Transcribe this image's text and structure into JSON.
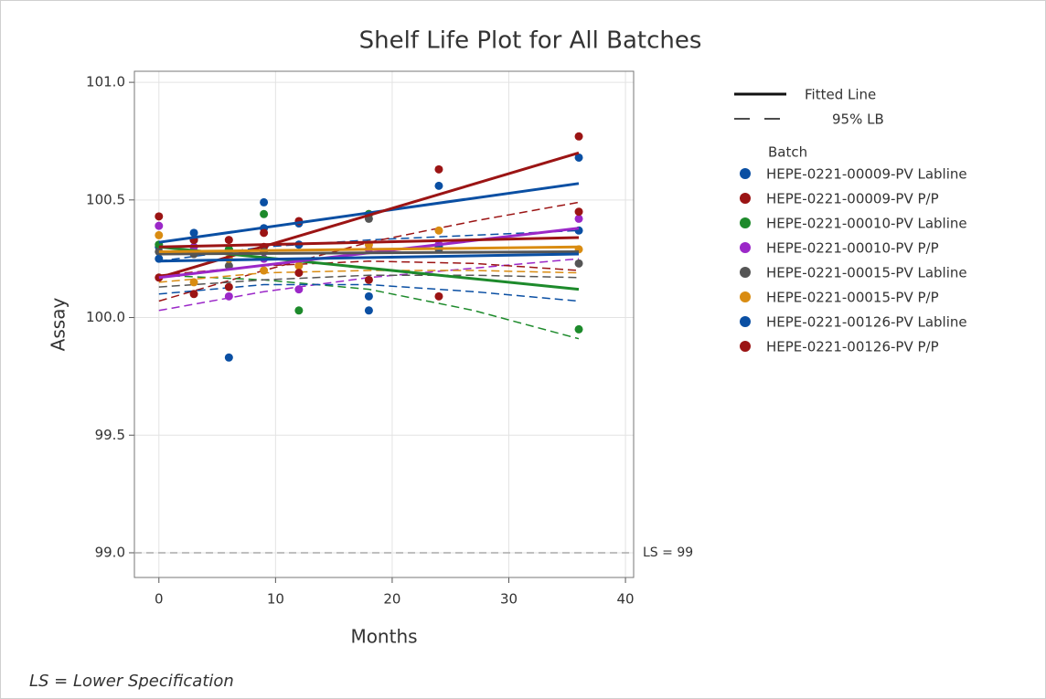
{
  "chart_data": {
    "type": "scatter",
    "title": "Shelf Life Plot for All Batches",
    "x_label": "Months",
    "y_label": "Assay",
    "xlim": [
      -2.1,
      40.7
    ],
    "ylim": [
      98.895,
      101.047
    ],
    "xticks": [
      0,
      10,
      20,
      30,
      40
    ],
    "yticks": [
      {
        "value": 99,
        "label": "99.0"
      },
      {
        "value": 99.5,
        "label": "99.5"
      },
      {
        "value": 100,
        "label": "100.0"
      },
      {
        "value": 100.5,
        "label": "100.5"
      },
      {
        "value": 101,
        "label": "101.0"
      }
    ],
    "grid": true,
    "legend_position": "right",
    "legend": {
      "fitted": "Fitted Line",
      "lb": "95% LB",
      "title": "Batch"
    },
    "reference_line": {
      "value": 99,
      "label": "LS = 99"
    },
    "footnote": "LS = Lower Specification",
    "series": [
      {
        "name": "HEPE-0221-00009-PV Labline",
        "color": "#0a4fa3",
        "x": [
          0,
          3,
          6,
          9,
          12,
          18,
          24,
          36
        ],
        "values": [
          100.3,
          100.36,
          100.29,
          100.49,
          100.4,
          100.09,
          100.56,
          100.68
        ],
        "fit": {
          "x": [
            0,
            36
          ],
          "values": [
            100.32,
            100.57
          ]
        },
        "lb": {
          "x": [
            0,
            9,
            18,
            27,
            36
          ],
          "values": [
            100.24,
            100.3,
            100.33,
            100.35,
            100.37
          ]
        }
      },
      {
        "name": "HEPE-0221-00009-PV P/P",
        "color": "#9b1414",
        "x": [
          0,
          3,
          6,
          9,
          12,
          18,
          24,
          36
        ],
        "values": [
          100.17,
          100.1,
          100.13,
          100.3,
          100.41,
          100.44,
          100.63,
          100.77
        ],
        "fit": {
          "x": [
            0,
            36
          ],
          "values": [
            100.17,
            100.7
          ]
        },
        "lb": {
          "x": [
            0,
            9,
            18,
            27,
            36
          ],
          "values": [
            100.07,
            100.2,
            100.32,
            100.41,
            100.49
          ]
        }
      },
      {
        "name": "HEPE-0221-00010-PV Labline",
        "color": "#1d8a2b",
        "x": [
          0,
          3,
          6,
          9,
          12,
          18,
          24,
          36
        ],
        "values": [
          100.31,
          100.33,
          100.29,
          100.44,
          100.03,
          100.44,
          100.3,
          99.95
        ],
        "fit": {
          "x": [
            0,
            36
          ],
          "values": [
            100.3,
            100.12
          ]
        },
        "lb": {
          "x": [
            0,
            9,
            18,
            27,
            36
          ],
          "values": [
            100.18,
            100.16,
            100.12,
            100.03,
            99.91
          ]
        }
      },
      {
        "name": "HEPE-0221-00010-PV P/P",
        "color": "#9b28c8",
        "x": [
          0,
          3,
          6,
          9,
          12,
          18,
          24,
          36
        ],
        "values": [
          100.39,
          100.3,
          100.09,
          100.25,
          100.12,
          100.29,
          100.31,
          100.42
        ],
        "fit": {
          "x": [
            0,
            36
          ],
          "values": [
            100.17,
            100.38
          ]
        },
        "lb": {
          "x": [
            0,
            9,
            18,
            27,
            36
          ],
          "values": [
            100.03,
            100.11,
            100.17,
            100.21,
            100.25
          ]
        }
      },
      {
        "name": "HEPE-0221-00015-PV Labline",
        "color": "#555555",
        "x": [
          0,
          3,
          6,
          9,
          12,
          18,
          24,
          36
        ],
        "values": [
          100.28,
          100.27,
          100.22,
          100.28,
          100.31,
          100.42,
          100.29,
          100.23
        ],
        "fit": {
          "x": [
            0,
            36
          ],
          "values": [
            100.27,
            100.28
          ]
        },
        "lb": {
          "x": [
            0,
            9,
            18,
            27,
            36
          ],
          "values": [
            100.13,
            100.16,
            100.18,
            100.18,
            100.17
          ]
        }
      },
      {
        "name": "HEPE-0221-00015-PV P/P",
        "color": "#d98c12",
        "x": [
          0,
          3,
          6,
          9,
          12,
          18,
          24,
          36
        ],
        "values": [
          100.35,
          100.15,
          100.25,
          100.2,
          100.22,
          100.31,
          100.37,
          100.29
        ],
        "fit": {
          "x": [
            0,
            36
          ],
          "values": [
            100.28,
            100.3
          ]
        },
        "lb": {
          "x": [
            0,
            9,
            18,
            27,
            36
          ],
          "values": [
            100.15,
            100.19,
            100.2,
            100.2,
            100.19
          ]
        }
      },
      {
        "name": "HEPE-0221-00126-PV Labline",
        "color": "#0a4fa3",
        "x": [
          0,
          3,
          6,
          9,
          12,
          18,
          24,
          36
        ],
        "values": [
          100.25,
          100.33,
          99.83,
          100.38,
          100.31,
          100.03,
          100.3,
          100.37
        ],
        "fit": {
          "x": [
            0,
            36
          ],
          "values": [
            100.24,
            100.27
          ]
        },
        "lb": {
          "x": [
            0,
            9,
            18,
            27,
            36
          ],
          "values": [
            100.1,
            100.14,
            100.14,
            100.11,
            100.07
          ]
        }
      },
      {
        "name": "HEPE-0221-00126-PV P/P",
        "color": "#9b1414",
        "x": [
          0,
          3,
          6,
          9,
          12,
          18,
          24,
          36
        ],
        "values": [
          100.43,
          100.33,
          100.33,
          100.36,
          100.19,
          100.16,
          100.09,
          100.45
        ],
        "fit": {
          "x": [
            0,
            36
          ],
          "values": [
            100.3,
            100.34
          ]
        },
        "lb": {
          "x": [
            0,
            9,
            18,
            27,
            36
          ],
          "values": [
            100.18,
            100.22,
            100.24,
            100.23,
            100.2
          ]
        }
      }
    ]
  }
}
